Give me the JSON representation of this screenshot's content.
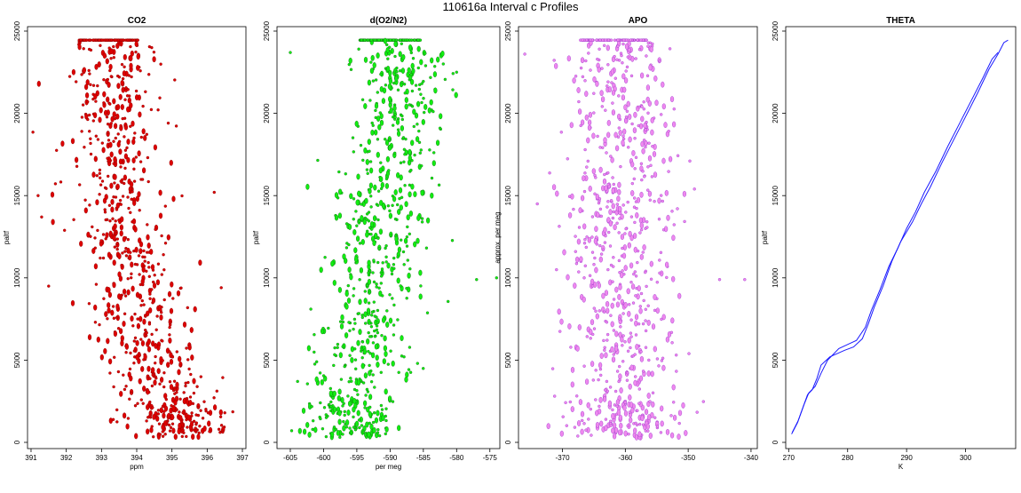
{
  "figure": {
    "title": "110616a   Interval c Profiles"
  },
  "chart_data": [
    {
      "type": "scatter",
      "title": "CO2",
      "xlabel": "ppm",
      "ylabel": "paltf",
      "xlim": [
        390.9,
        397.1
      ],
      "ylim": [
        0,
        25000
      ],
      "x_ticks": [
        391,
        392,
        393,
        394,
        395,
        396,
        397
      ],
      "y_ticks": [
        0,
        5000,
        10000,
        15000,
        20000,
        25000
      ],
      "series": [
        {
          "color": "#dd0000",
          "outline": "#880000",
          "x_center_profile": [
            [
              500,
              395.3
            ],
            [
              2000,
              395.1
            ],
            [
              4000,
              394.6
            ],
            [
              6000,
              394.3
            ],
            [
              8000,
              394.0
            ],
            [
              10000,
              393.8
            ],
            [
              12000,
              393.6
            ],
            [
              14000,
              393.6
            ],
            [
              16000,
              393.5
            ],
            [
              18000,
              393.4
            ],
            [
              20000,
              393.4
            ],
            [
              22000,
              393.3
            ],
            [
              24400,
              393.2
            ]
          ],
          "x_spread": 0.65,
          "n_points": 900,
          "y_range": [
            300,
            24450
          ],
          "outliers": [
            [
              391.2,
              15000
            ],
            [
              391.3,
              13700
            ],
            [
              391.5,
              9500
            ],
            [
              396.2,
              15200
            ],
            [
              396.5,
              1800
            ],
            [
              396.4,
              9400
            ]
          ]
        }
      ]
    },
    {
      "type": "scatter",
      "title": "d(O2/N2)",
      "xlabel": "per meg",
      "ylabel": "paltf",
      "xlim": [
        -607,
        -573.5
      ],
      "ylim": [
        0,
        25000
      ],
      "x_ticks": [
        -605,
        -600,
        -595,
        -590,
        -585,
        -580,
        -575
      ],
      "y_ticks": [
        0,
        5000,
        10000,
        15000,
        20000,
        25000
      ],
      "series": [
        {
          "color": "#11ee11",
          "outline": "#116611",
          "x_center_profile": [
            [
              500,
              -596.5
            ],
            [
              2000,
              -596.0
            ],
            [
              4000,
              -594.5
            ],
            [
              6000,
              -594.0
            ],
            [
              8000,
              -593.5
            ],
            [
              10000,
              -593.0
            ],
            [
              12000,
              -592.0
            ],
            [
              14000,
              -591.5
            ],
            [
              16000,
              -590.5
            ],
            [
              18000,
              -589.0
            ],
            [
              20000,
              -588.5
            ],
            [
              22000,
              -588.0
            ],
            [
              24400,
              -590.0
            ]
          ],
          "x_spread": 3.5,
          "n_points": 850,
          "y_range": [
            300,
            24450
          ],
          "outliers": [
            [
              -605.0,
              23700
            ],
            [
              -577.0,
              9900
            ],
            [
              -574.0,
              10000
            ],
            [
              -580.0,
              22500
            ],
            [
              -582.0,
              23000
            ]
          ]
        }
      ]
    },
    {
      "type": "scatter",
      "title": "APO",
      "xlabel": "",
      "ylabel": "approx. per meg",
      "xlim": [
        -377,
        -339
      ],
      "ylim": [
        0,
        25000
      ],
      "x_ticks": [
        -370,
        -360,
        -350,
        -340
      ],
      "y_ticks": [
        0,
        5000,
        10000,
        15000,
        20000,
        25000
      ],
      "series": [
        {
          "color": "#ee88ee",
          "outline": "#9933cc",
          "x_center_profile": [
            [
              500,
              -360.0
            ],
            [
              4000,
              -360.5
            ],
            [
              8000,
              -361.0
            ],
            [
              12000,
              -361.5
            ],
            [
              16000,
              -361.0
            ],
            [
              20000,
              -360.0
            ],
            [
              24400,
              -362.0
            ]
          ],
          "x_spread": 4.2,
          "n_points": 850,
          "y_range": [
            300,
            24450
          ],
          "outliers": [
            [
              -376.0,
              23600
            ],
            [
              -374.0,
              14500
            ],
            [
              -341.0,
              9900
            ],
            [
              -345.0,
              9900
            ],
            [
              -349.0,
              15400
            ]
          ]
        }
      ]
    },
    {
      "type": "line",
      "title": "THETA",
      "xlabel": "K",
      "ylabel": "paltf",
      "xlim": [
        269.5,
        308.5
      ],
      "ylim": [
        0,
        25000
      ],
      "x_ticks": [
        270,
        280,
        290,
        300
      ],
      "y_ticks": [
        0,
        5000,
        10000,
        15000,
        20000,
        25000
      ],
      "series": [
        {
          "color": "#1a1aff",
          "points": [
            [
              270.5,
              500
            ],
            [
              271.5,
              1200
            ],
            [
              272.5,
              2200
            ],
            [
              273.2,
              2900
            ],
            [
              274.0,
              3200
            ],
            [
              274.8,
              3900
            ],
            [
              275.5,
              4700
            ],
            [
              277.0,
              5200
            ],
            [
              279.5,
              5600
            ],
            [
              281.0,
              5800
            ],
            [
              282.5,
              6300
            ],
            [
              283.5,
              7200
            ],
            [
              284.5,
              8200
            ],
            [
              286.0,
              9500
            ],
            [
              287.5,
              11000
            ],
            [
              289.0,
              12200
            ],
            [
              291.0,
              13400
            ],
            [
              292.5,
              14500
            ],
            [
              294.0,
              15500
            ],
            [
              296.0,
              17000
            ],
            [
              298.0,
              18400
            ],
            [
              300.0,
              19800
            ],
            [
              302.0,
              21200
            ],
            [
              304.0,
              22700
            ],
            [
              305.5,
              23600
            ],
            [
              306.5,
              24300
            ],
            [
              307.2,
              24450
            ]
          ]
        },
        {
          "color": "#1a1aff",
          "points": [
            [
              270.6,
              600
            ],
            [
              271.6,
              1300
            ],
            [
              272.6,
              2300
            ],
            [
              273.4,
              3000
            ],
            [
              274.5,
              3400
            ],
            [
              275.5,
              4200
            ],
            [
              276.6,
              5000
            ],
            [
              278.5,
              5700
            ],
            [
              280.0,
              5950
            ],
            [
              281.5,
              6200
            ],
            [
              283.0,
              7000
            ],
            [
              284.0,
              8000
            ],
            [
              285.5,
              9300
            ],
            [
              287.0,
              10700
            ],
            [
              288.5,
              11800
            ],
            [
              290.0,
              13000
            ],
            [
              291.5,
              14000
            ],
            [
              293.0,
              15200
            ],
            [
              295.0,
              16500
            ],
            [
              297.0,
              18000
            ],
            [
              299.0,
              19400
            ],
            [
              301.0,
              20800
            ],
            [
              303.0,
              22200
            ],
            [
              304.5,
              23300
            ],
            [
              305.5,
              23700
            ]
          ]
        }
      ]
    }
  ]
}
